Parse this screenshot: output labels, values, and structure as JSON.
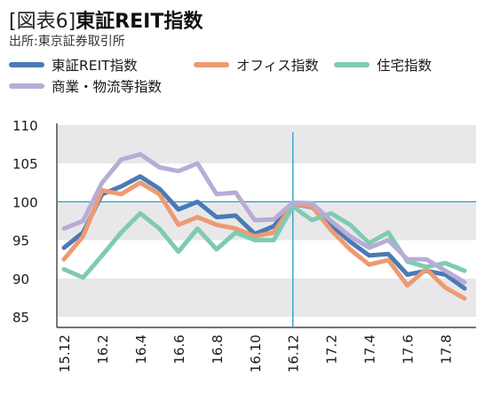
{
  "header": {
    "figure_tag": "[図表6]",
    "title": "東証REIT指数",
    "source": "出所:東京証券取引所"
  },
  "chart_data": {
    "type": "line",
    "title": "東証REIT指数",
    "xlabel": "",
    "ylabel": "",
    "ylim": [
      85,
      110
    ],
    "yticks": [
      85,
      90,
      95,
      100,
      105,
      110
    ],
    "grid": "horizontal bands",
    "legend_position": "top",
    "x": [
      "15.12",
      "16.1",
      "16.2",
      "16.3",
      "16.4",
      "16.5",
      "16.6",
      "16.7",
      "16.8",
      "16.9",
      "16.10",
      "16.11",
      "16.12",
      "17.1",
      "17.2",
      "17.3",
      "17.4",
      "17.5",
      "17.6",
      "17.7",
      "17.8",
      "17.9"
    ],
    "xtick_labels": [
      "15.12",
      "16.2",
      "16.4",
      "16.6",
      "16.8",
      "16.10",
      "16.12",
      "17.2",
      "17.4",
      "17.6",
      "17.8"
    ],
    "xtick_indices": [
      0,
      2,
      4,
      6,
      8,
      10,
      12,
      14,
      16,
      18,
      20
    ],
    "reference": {
      "y": 100,
      "x_index": 12,
      "color": "#2a9ac0"
    },
    "series": [
      {
        "name": "東証REIT指数",
        "color": "#4a7ab5",
        "values": [
          94,
          96,
          101,
          102,
          103.3,
          101.7,
          99,
          100,
          98,
          98.2,
          95.8,
          96.8,
          99.7,
          99.3,
          97,
          94.8,
          93,
          93.2,
          90.5,
          91,
          90.5,
          88.7
        ]
      },
      {
        "name": "オフィス指数",
        "color": "#ee9a72",
        "values": [
          92.5,
          95.5,
          101.5,
          101,
          102.5,
          101,
          97,
          98,
          97,
          96.5,
          95.5,
          96,
          99.7,
          99.4,
          96.3,
          93.8,
          91.8,
          92.4,
          89.1,
          91.2,
          88.8,
          87.4
        ]
      },
      {
        "name": "住宅指数",
        "color": "#7fcbb0",
        "values": [
          91.2,
          90.1,
          93,
          96,
          98.5,
          96.5,
          93.5,
          96.5,
          93.8,
          96,
          95,
          95,
          99.4,
          97.6,
          98.5,
          97,
          94.6,
          96,
          92.2,
          91.5,
          92,
          91
        ]
      },
      {
        "name": "商業・物流等指数",
        "color": "#b8acd6",
        "values": [
          96.5,
          97.5,
          102.5,
          105.5,
          106.2,
          104.5,
          104,
          105,
          101,
          101.2,
          97.6,
          97.7,
          99.9,
          99.8,
          97.5,
          95.5,
          94,
          95,
          92.5,
          92.5,
          91,
          89.5
        ]
      }
    ]
  }
}
